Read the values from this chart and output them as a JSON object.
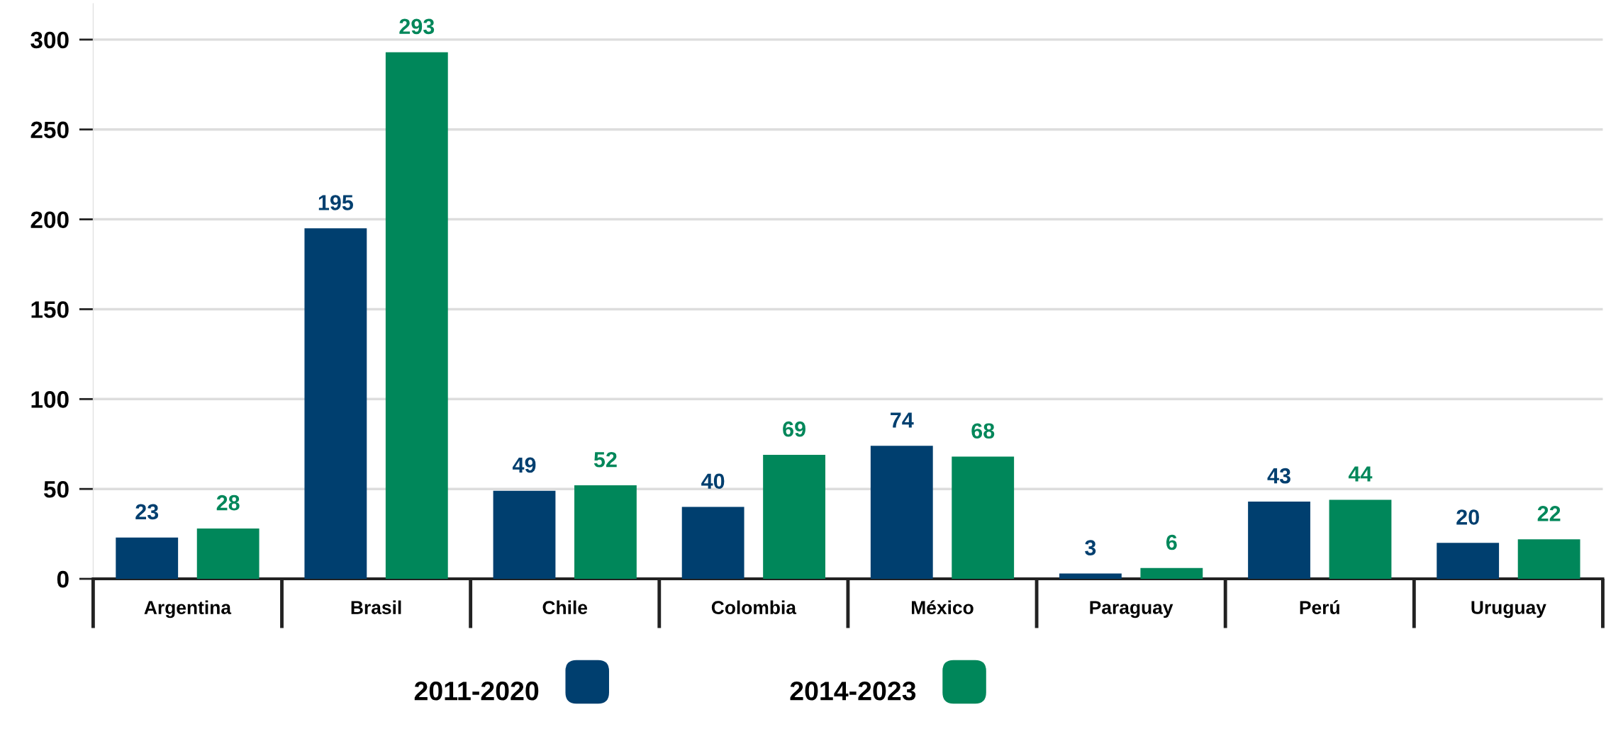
{
  "chart_data": {
    "type": "bar",
    "categories": [
      "Argentina",
      "Brasil",
      "Chile",
      "Colombia",
      "México",
      "Paraguay",
      "Perú",
      "Uruguay"
    ],
    "series": [
      {
        "name": "2011-2020",
        "color": "#003f6f",
        "values": [
          23,
          195,
          49,
          40,
          74,
          3,
          43,
          20
        ]
      },
      {
        "name": "2014-2023",
        "color": "#00875a",
        "values": [
          28,
          293,
          52,
          69,
          68,
          6,
          44,
          22
        ]
      }
    ],
    "ylim": [
      0,
      320
    ],
    "yticks": [
      0,
      50,
      100,
      150,
      200,
      250,
      300
    ],
    "grid": "y",
    "legend": "bottom",
    "data_labels": true
  }
}
